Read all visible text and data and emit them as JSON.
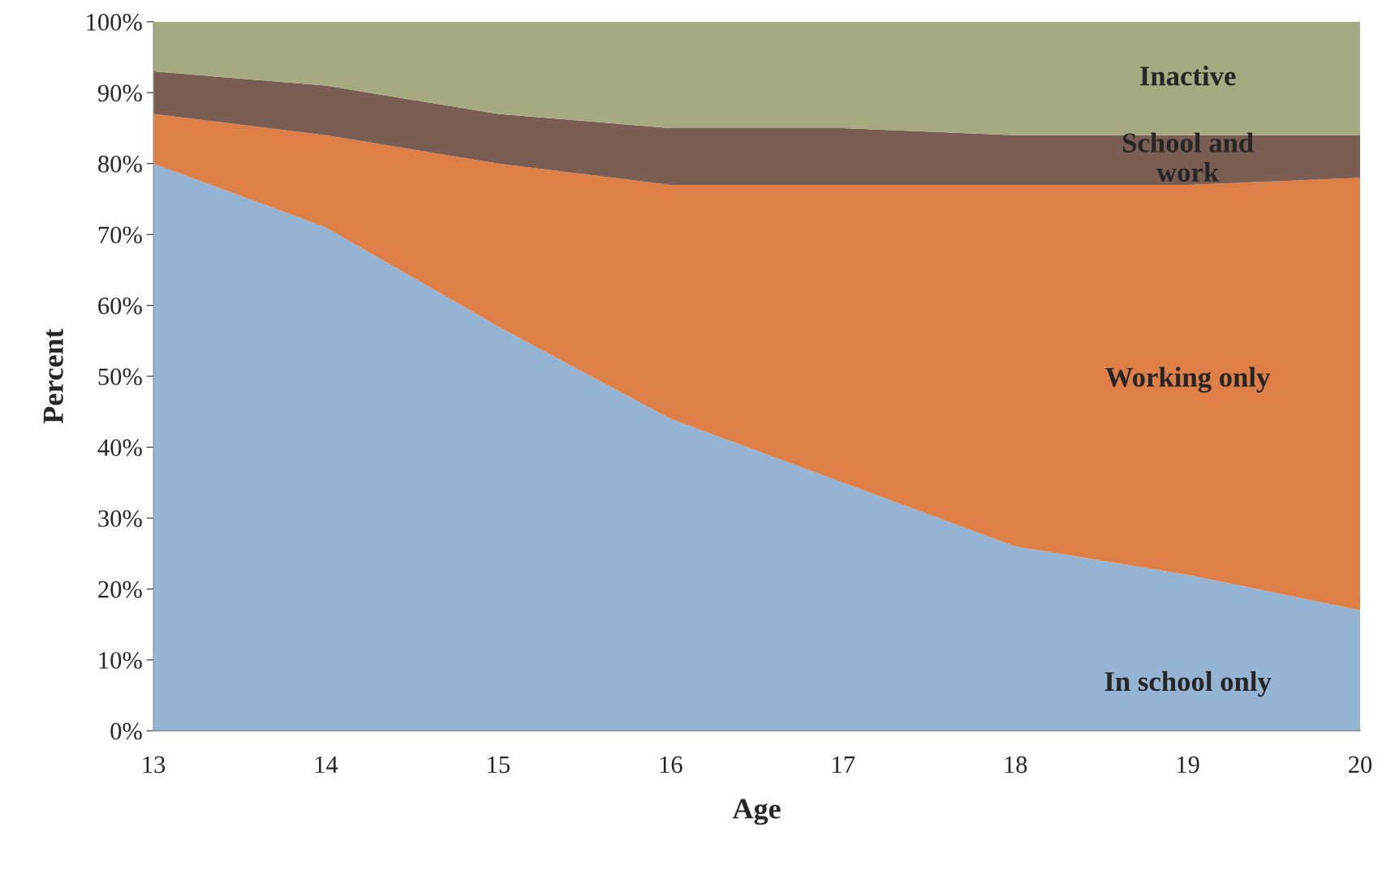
{
  "chart_data": {
    "type": "area",
    "stacked": true,
    "xlabel": "Age",
    "ylabel": "Percent",
    "x": [
      13,
      14,
      15,
      16,
      17,
      18,
      19,
      20
    ],
    "series": [
      {
        "name": "In school only",
        "color": "#95b3d2",
        "values": [
          80,
          71,
          57,
          44,
          35,
          26,
          22,
          17
        ]
      },
      {
        "name": "Working only",
        "color": "#de7f48",
        "values": [
          7,
          13,
          23,
          33,
          42,
          51,
          55,
          61
        ]
      },
      {
        "name": "School and work",
        "color": "#7a5e53",
        "values": [
          6,
          7,
          7,
          8,
          8,
          7,
          7,
          6
        ]
      },
      {
        "name": "Inactive",
        "color": "#a5aa81",
        "values": [
          7,
          9,
          13,
          15,
          15,
          16,
          16,
          16
        ]
      }
    ],
    "xlim": [
      13,
      20
    ],
    "ylim": [
      0,
      100
    ],
    "xticks": [
      13,
      14,
      15,
      16,
      17,
      18,
      19,
      20
    ],
    "yticks": [
      {
        "value": 0,
        "label": "0%"
      },
      {
        "value": 10,
        "label": "10%"
      },
      {
        "value": 20,
        "label": "20%"
      },
      {
        "value": 30,
        "label": "30%"
      },
      {
        "value": 40,
        "label": "40%"
      },
      {
        "value": 50,
        "label": "50%"
      },
      {
        "value": 60,
        "label": "60%"
      },
      {
        "value": 70,
        "label": "70%"
      },
      {
        "value": 80,
        "label": "80%"
      },
      {
        "value": 90,
        "label": "90%"
      },
      {
        "value": 100,
        "label": "100%"
      }
    ],
    "grid": false,
    "legend": false
  }
}
